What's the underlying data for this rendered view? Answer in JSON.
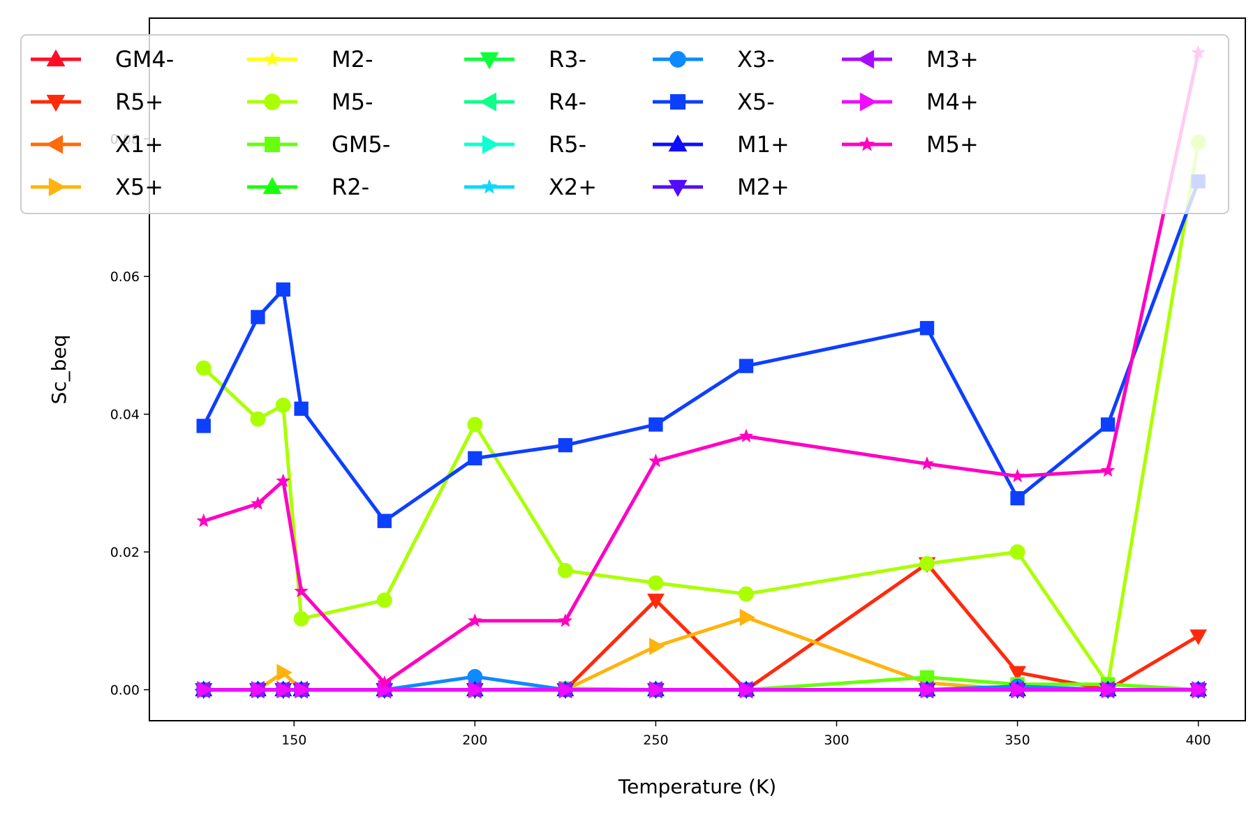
{
  "chart_data": {
    "type": "line",
    "xlabel": "Temperature (K)",
    "ylabel": "Sc_beq",
    "xlim": [
      110,
      413
    ],
    "ylim": [
      -0.0045,
      0.0975
    ],
    "xticks": [
      150,
      200,
      250,
      300,
      350,
      400
    ],
    "yticks": [
      0.0,
      0.02,
      0.04,
      0.06,
      0.08
    ],
    "ytick_labels": [
      "0.00",
      "0.02",
      "0.04",
      "0.06",
      "0.08"
    ],
    "grid": false,
    "legend": {
      "position": "top",
      "columns": 6
    },
    "x": [
      125,
      140,
      147,
      152,
      175,
      200,
      225,
      250,
      275,
      325,
      350,
      375,
      400
    ],
    "series": [
      {
        "name": "GM4-",
        "color": "#ff0d26",
        "marker": "triangle-up",
        "values": [
          0,
          0,
          0,
          0,
          0,
          0,
          0,
          0,
          0,
          0,
          0,
          0,
          0
        ]
      },
      {
        "name": "R5+",
        "color": "#ff2a0d",
        "marker": "triangle-down",
        "values": [
          0,
          0,
          0,
          0,
          0,
          0,
          0,
          0.013,
          0,
          0.0183,
          0.0025,
          0,
          0.0078
        ]
      },
      {
        "name": "X1+",
        "color": "#ff6a0d",
        "marker": "triangle-left",
        "values": [
          0,
          0,
          0,
          0,
          0,
          0,
          0,
          0,
          0,
          0,
          0,
          0,
          0
        ]
      },
      {
        "name": "X5+",
        "color": "#ffb30d",
        "marker": "triangle-right",
        "values": [
          0,
          0,
          0.0025,
          0,
          0,
          0,
          0,
          0.0063,
          0.0105,
          0.001,
          0,
          0,
          0
        ]
      },
      {
        "name": "M2-",
        "color": "#ffff0d",
        "marker": "star",
        "values": [
          0,
          0,
          0,
          0,
          0,
          0,
          0,
          0,
          0,
          0,
          0,
          0,
          0
        ]
      },
      {
        "name": "M5-",
        "color": "#aaff00",
        "marker": "circle",
        "values": [
          0.0467,
          0.0393,
          0.0413,
          0.0103,
          0.013,
          0.0385,
          0.0173,
          0.0155,
          0.0139,
          0.0183,
          0.02,
          0.0008,
          0.0795
        ]
      },
      {
        "name": "GM5-",
        "color": "#66ff0d",
        "marker": "square",
        "values": [
          0,
          0,
          0,
          0,
          0,
          0,
          0.0002,
          0,
          0,
          0.0018,
          0.0008,
          0.0008,
          0
        ]
      },
      {
        "name": "R2-",
        "color": "#1aff0d",
        "marker": "triangle-up",
        "values": [
          0,
          0,
          0,
          0,
          0,
          0,
          0,
          0,
          0,
          0,
          0,
          0,
          0
        ]
      },
      {
        "name": "R3-",
        "color": "#0dff3a",
        "marker": "triangle-down",
        "values": [
          0,
          0,
          0,
          0,
          0,
          0,
          0,
          0,
          0,
          0,
          0,
          0,
          0
        ]
      },
      {
        "name": "R4-",
        "color": "#0dff8a",
        "marker": "triangle-left",
        "values": [
          0,
          0,
          0,
          0,
          0,
          0,
          0,
          0,
          0,
          0,
          0,
          0,
          0
        ]
      },
      {
        "name": "R5-",
        "color": "#0dffd2",
        "marker": "triangle-right",
        "values": [
          0,
          0,
          0,
          0,
          0,
          0,
          0,
          0,
          0,
          0,
          0,
          0,
          0
        ]
      },
      {
        "name": "X2+",
        "color": "#0dd7ff",
        "marker": "star",
        "values": [
          0,
          0,
          0,
          0,
          0,
          0,
          0,
          0,
          0,
          0,
          0,
          0,
          0
        ]
      },
      {
        "name": "X3-",
        "color": "#0d8aff",
        "marker": "circle",
        "values": [
          0,
          0,
          0,
          0,
          0,
          0.0019,
          0,
          0,
          0,
          0,
          0.0005,
          0,
          0
        ]
      },
      {
        "name": "X5-",
        "color": "#0d3fff",
        "marker": "square",
        "values": [
          0.0383,
          0.0541,
          0.0581,
          0.0408,
          0.0245,
          0.0336,
          0.0355,
          0.0385,
          0.047,
          0.0525,
          0.0278,
          0.0385,
          0.0738
        ]
      },
      {
        "name": "M1+",
        "color": "#0d0dff",
        "marker": "triangle-up",
        "values": [
          0,
          0,
          0,
          0,
          0,
          0,
          0,
          0,
          0,
          0,
          0,
          0,
          0
        ]
      },
      {
        "name": "M2+",
        "color": "#520dff",
        "marker": "triangle-down",
        "values": [
          0,
          0,
          0,
          0,
          0,
          0,
          0,
          0,
          0,
          0,
          0,
          0,
          0
        ]
      },
      {
        "name": "M3+",
        "color": "#a60dff",
        "marker": "triangle-left",
        "values": [
          0,
          0,
          0,
          0,
          0,
          0,
          0,
          0,
          0,
          0,
          0,
          0,
          0
        ]
      },
      {
        "name": "M4+",
        "color": "#ee0dff",
        "marker": "triangle-right",
        "values": [
          0,
          0,
          0,
          0,
          0,
          0,
          0,
          0,
          0,
          0,
          0,
          0,
          0
        ]
      },
      {
        "name": "M5+",
        "color": "#ff00c3",
        "marker": "star",
        "values": [
          0.0245,
          0.027,
          0.0303,
          0.0143,
          0.001,
          0.01,
          0.01,
          0.0332,
          0.0368,
          0.0328,
          0.031,
          0.0318,
          0.0925
        ]
      }
    ]
  }
}
